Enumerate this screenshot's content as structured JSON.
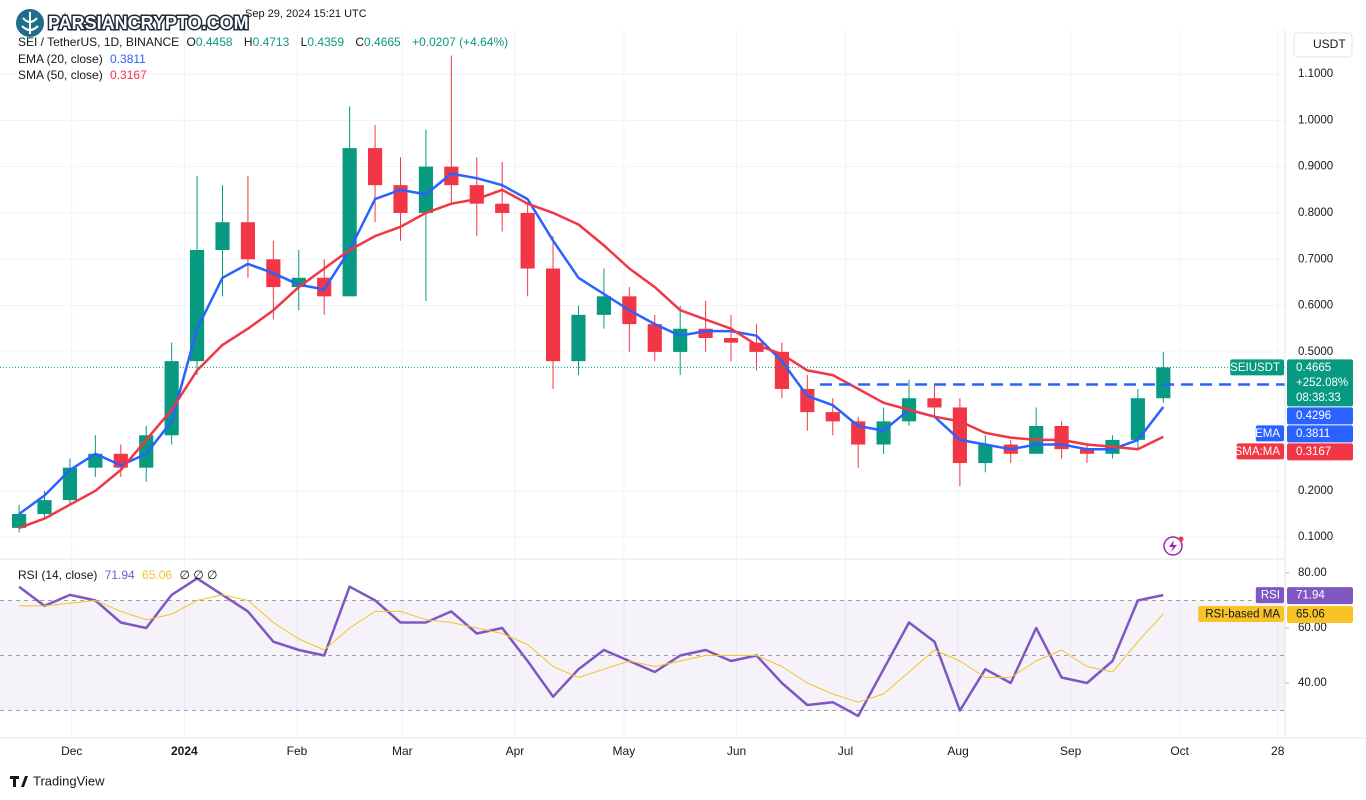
{
  "watermark": "PARSIANCRYPTO.COM",
  "header": {
    "timestamp": "Sep 29, 2024 15:21 UTC",
    "symbol": "SEI / TetherUS, 1D, BINANCE",
    "ohlc": [
      [
        "O",
        "0.4458"
      ],
      [
        "H",
        "0.4713"
      ],
      [
        "L",
        "0.4359"
      ],
      [
        "C",
        "0.4665"
      ]
    ],
    "change": "+0.0207 (+4.64%)"
  },
  "currency_button": "USDT",
  "footer": "TradingView",
  "chart_data": [
    {
      "type": "candlestick",
      "symbol_tag": "SEIUSDT",
      "x": [
        "2023-11-13",
        "2023-11-20",
        "2023-11-27",
        "2023-12-04",
        "2023-12-11",
        "2023-12-18",
        "2023-12-25",
        "2024-01-01",
        "2024-01-08",
        "2024-01-15",
        "2024-01-22",
        "2024-01-29",
        "2024-02-05",
        "2024-02-12",
        "2024-02-19",
        "2024-02-26",
        "2024-03-04",
        "2024-03-11",
        "2024-03-18",
        "2024-03-25",
        "2024-04-01",
        "2024-04-08",
        "2024-04-15",
        "2024-04-22",
        "2024-04-29",
        "2024-05-06",
        "2024-05-13",
        "2024-05-20",
        "2024-05-27",
        "2024-06-03",
        "2024-06-10",
        "2024-06-17",
        "2024-06-24",
        "2024-07-01",
        "2024-07-08",
        "2024-07-15",
        "2024-07-22",
        "2024-07-29",
        "2024-08-05",
        "2024-08-12",
        "2024-08-19",
        "2024-08-26",
        "2024-09-02",
        "2024-09-09",
        "2024-09-16",
        "2024-09-23"
      ],
      "open": [
        0.12,
        0.15,
        0.18,
        0.25,
        0.28,
        0.25,
        0.32,
        0.48,
        0.72,
        0.78,
        0.7,
        0.64,
        0.66,
        0.62,
        0.94,
        0.86,
        0.8,
        0.9,
        0.86,
        0.82,
        0.8,
        0.68,
        0.48,
        0.58,
        0.62,
        0.56,
        0.5,
        0.55,
        0.53,
        0.52,
        0.5,
        0.42,
        0.37,
        0.35,
        0.3,
        0.35,
        0.4,
        0.38,
        0.26,
        0.3,
        0.28,
        0.34,
        0.29,
        0.28,
        0.31,
        0.4
      ],
      "high": [
        0.17,
        0.2,
        0.27,
        0.32,
        0.3,
        0.34,
        0.52,
        0.88,
        0.86,
        0.88,
        0.74,
        0.72,
        0.7,
        1.03,
        0.99,
        0.92,
        0.98,
        1.14,
        0.92,
        0.91,
        0.82,
        0.75,
        0.6,
        0.68,
        0.64,
        0.58,
        0.6,
        0.61,
        0.58,
        0.56,
        0.52,
        0.45,
        0.4,
        0.36,
        0.38,
        0.44,
        0.43,
        0.4,
        0.32,
        0.31,
        0.38,
        0.35,
        0.3,
        0.32,
        0.42,
        0.5
      ],
      "low": [
        0.11,
        0.14,
        0.17,
        0.23,
        0.23,
        0.22,
        0.3,
        0.45,
        0.62,
        0.66,
        0.57,
        0.59,
        0.58,
        0.62,
        0.78,
        0.74,
        0.61,
        0.82,
        0.75,
        0.76,
        0.62,
        0.42,
        0.45,
        0.55,
        0.5,
        0.48,
        0.45,
        0.5,
        0.48,
        0.46,
        0.4,
        0.33,
        0.32,
        0.25,
        0.28,
        0.34,
        0.36,
        0.21,
        0.24,
        0.26,
        0.28,
        0.27,
        0.26,
        0.27,
        0.29,
        0.39
      ],
      "close": [
        0.15,
        0.18,
        0.25,
        0.28,
        0.25,
        0.32,
        0.48,
        0.72,
        0.78,
        0.7,
        0.64,
        0.66,
        0.62,
        0.94,
        0.86,
        0.8,
        0.9,
        0.86,
        0.82,
        0.8,
        0.68,
        0.48,
        0.58,
        0.62,
        0.56,
        0.5,
        0.55,
        0.53,
        0.52,
        0.5,
        0.42,
        0.37,
        0.35,
        0.3,
        0.35,
        0.4,
        0.38,
        0.26,
        0.3,
        0.28,
        0.34,
        0.29,
        0.28,
        0.31,
        0.4,
        0.4665
      ],
      "up_color": "#089981",
      "down_color": "#f23645",
      "series": [
        {
          "name": "EMA (20, close)",
          "tag": "EMA",
          "color": "#2962ff",
          "values": [
            0.15,
            0.19,
            0.245,
            0.28,
            0.255,
            0.28,
            0.35,
            0.55,
            0.66,
            0.69,
            0.67,
            0.645,
            0.635,
            0.72,
            0.83,
            0.85,
            0.84,
            0.885,
            0.875,
            0.86,
            0.83,
            0.74,
            0.66,
            0.625,
            0.59,
            0.56,
            0.535,
            0.545,
            0.545,
            0.535,
            0.48,
            0.405,
            0.385,
            0.34,
            0.33,
            0.375,
            0.36,
            0.31,
            0.3,
            0.29,
            0.3,
            0.3,
            0.29,
            0.29,
            0.31,
            0.3811
          ]
        },
        {
          "name": "SMA (50, close)",
          "tag": "SMA:MA",
          "color": "#f23645",
          "values": [
            0.12,
            0.14,
            0.17,
            0.2,
            0.245,
            0.31,
            0.375,
            0.46,
            0.515,
            0.55,
            0.59,
            0.64,
            0.68,
            0.72,
            0.75,
            0.77,
            0.8,
            0.82,
            0.83,
            0.85,
            0.82,
            0.8,
            0.775,
            0.73,
            0.68,
            0.64,
            0.59,
            0.57,
            0.55,
            0.515,
            0.495,
            0.46,
            0.45,
            0.42,
            0.39,
            0.375,
            0.36,
            0.35,
            0.325,
            0.315,
            0.31,
            0.31,
            0.3,
            0.295,
            0.29,
            0.3167
          ]
        }
      ],
      "last": {
        "change": "+252.08%",
        "countdown": "08:38:33"
      },
      "level": {
        "value": 0.4296,
        "from": "2024-06-24",
        "color": "#2962ff"
      },
      "xlim": [
        "2023-11-14",
        "2024-10-30"
      ],
      "ylim": [
        0.055,
        1.195
      ],
      "yticks": [
        {
          "value": 0.1,
          "label": "0.1000"
        },
        {
          "value": 0.2,
          "label": "0.2000"
        },
        {
          "value": 0.5,
          "label": "0.5000"
        },
        {
          "value": 0.6,
          "label": "0.6000"
        },
        {
          "value": 0.7,
          "label": "0.7000"
        },
        {
          "value": 0.8,
          "label": "0.8000"
        },
        {
          "value": 0.9,
          "label": "0.9000"
        },
        {
          "value": 1.0,
          "label": "1.0000"
        },
        {
          "value": 1.1,
          "label": "1.1000"
        }
      ],
      "grid": true
    },
    {
      "type": "line",
      "x": [
        "2023-11-13",
        "2023-11-20",
        "2023-11-27",
        "2023-12-04",
        "2023-12-11",
        "2023-12-18",
        "2023-12-25",
        "2024-01-01",
        "2024-01-08",
        "2024-01-15",
        "2024-01-22",
        "2024-01-29",
        "2024-02-05",
        "2024-02-12",
        "2024-02-19",
        "2024-02-26",
        "2024-03-04",
        "2024-03-11",
        "2024-03-18",
        "2024-03-25",
        "2024-04-01",
        "2024-04-08",
        "2024-04-15",
        "2024-04-22",
        "2024-04-29",
        "2024-05-06",
        "2024-05-13",
        "2024-05-20",
        "2024-05-27",
        "2024-06-03",
        "2024-06-10",
        "2024-06-17",
        "2024-06-24",
        "2024-07-01",
        "2024-07-08",
        "2024-07-15",
        "2024-07-22",
        "2024-07-29",
        "2024-08-05",
        "2024-08-12",
        "2024-08-19",
        "2024-08-26",
        "2024-09-02",
        "2024-09-09",
        "2024-09-16",
        "2024-09-23"
      ],
      "series": [
        {
          "name": "RSI (14, close)",
          "tag": "RSI",
          "color": "#7e57c2",
          "values": [
            75,
            68,
            72,
            70,
            62,
            60,
            72,
            78,
            72,
            66,
            55,
            52,
            50,
            75,
            70,
            62,
            62,
            66,
            58,
            60,
            48,
            35,
            45,
            52,
            48,
            44,
            50,
            52,
            48,
            50,
            40,
            32,
            33,
            28,
            45,
            62,
            55,
            30,
            45,
            40,
            60,
            42,
            40,
            48,
            70,
            71.94
          ]
        },
        {
          "name": "RSI-based MA",
          "color": "#f7c325",
          "values": [
            68,
            68,
            69,
            70,
            66,
            63,
            65,
            70,
            72,
            70,
            62,
            56,
            52,
            60,
            66,
            66,
            63,
            62,
            60,
            58,
            54,
            46,
            42,
            45,
            48,
            46,
            48,
            50,
            50,
            50,
            46,
            40,
            36,
            33,
            36,
            44,
            52,
            48,
            42,
            42,
            48,
            52,
            46,
            44,
            55,
            65.06
          ]
        }
      ],
      "legend_extra": "∅ ∅ ∅",
      "bands": [
        70,
        50,
        30
      ],
      "band_color": "#7e57c2",
      "xlim": [
        "2023-11-14",
        "2024-10-30"
      ],
      "ylim": [
        20,
        84.7
      ],
      "yticks": [
        {
          "value": 40,
          "label": "40.00"
        },
        {
          "value": 60,
          "label": "60.00"
        },
        {
          "value": 80,
          "label": "80.00"
        }
      ],
      "xticks": [
        {
          "value": "2023-12-01",
          "label": "Dec"
        },
        {
          "value": "2024-01-01",
          "label": "2024"
        },
        {
          "value": "2024-02-01",
          "label": "Feb"
        },
        {
          "value": "2024-03-01",
          "label": "Mar"
        },
        {
          "value": "2024-04-01",
          "label": "Apr"
        },
        {
          "value": "2024-05-01",
          "label": "May"
        },
        {
          "value": "2024-06-01",
          "label": "Jun"
        },
        {
          "value": "2024-07-01",
          "label": "Jul"
        },
        {
          "value": "2024-08-01",
          "label": "Aug"
        },
        {
          "value": "2024-09-01",
          "label": "Sep"
        },
        {
          "value": "2024-10-01",
          "label": "Oct"
        },
        {
          "value": "2024-10-28",
          "label": "28"
        }
      ],
      "grid": true
    }
  ]
}
